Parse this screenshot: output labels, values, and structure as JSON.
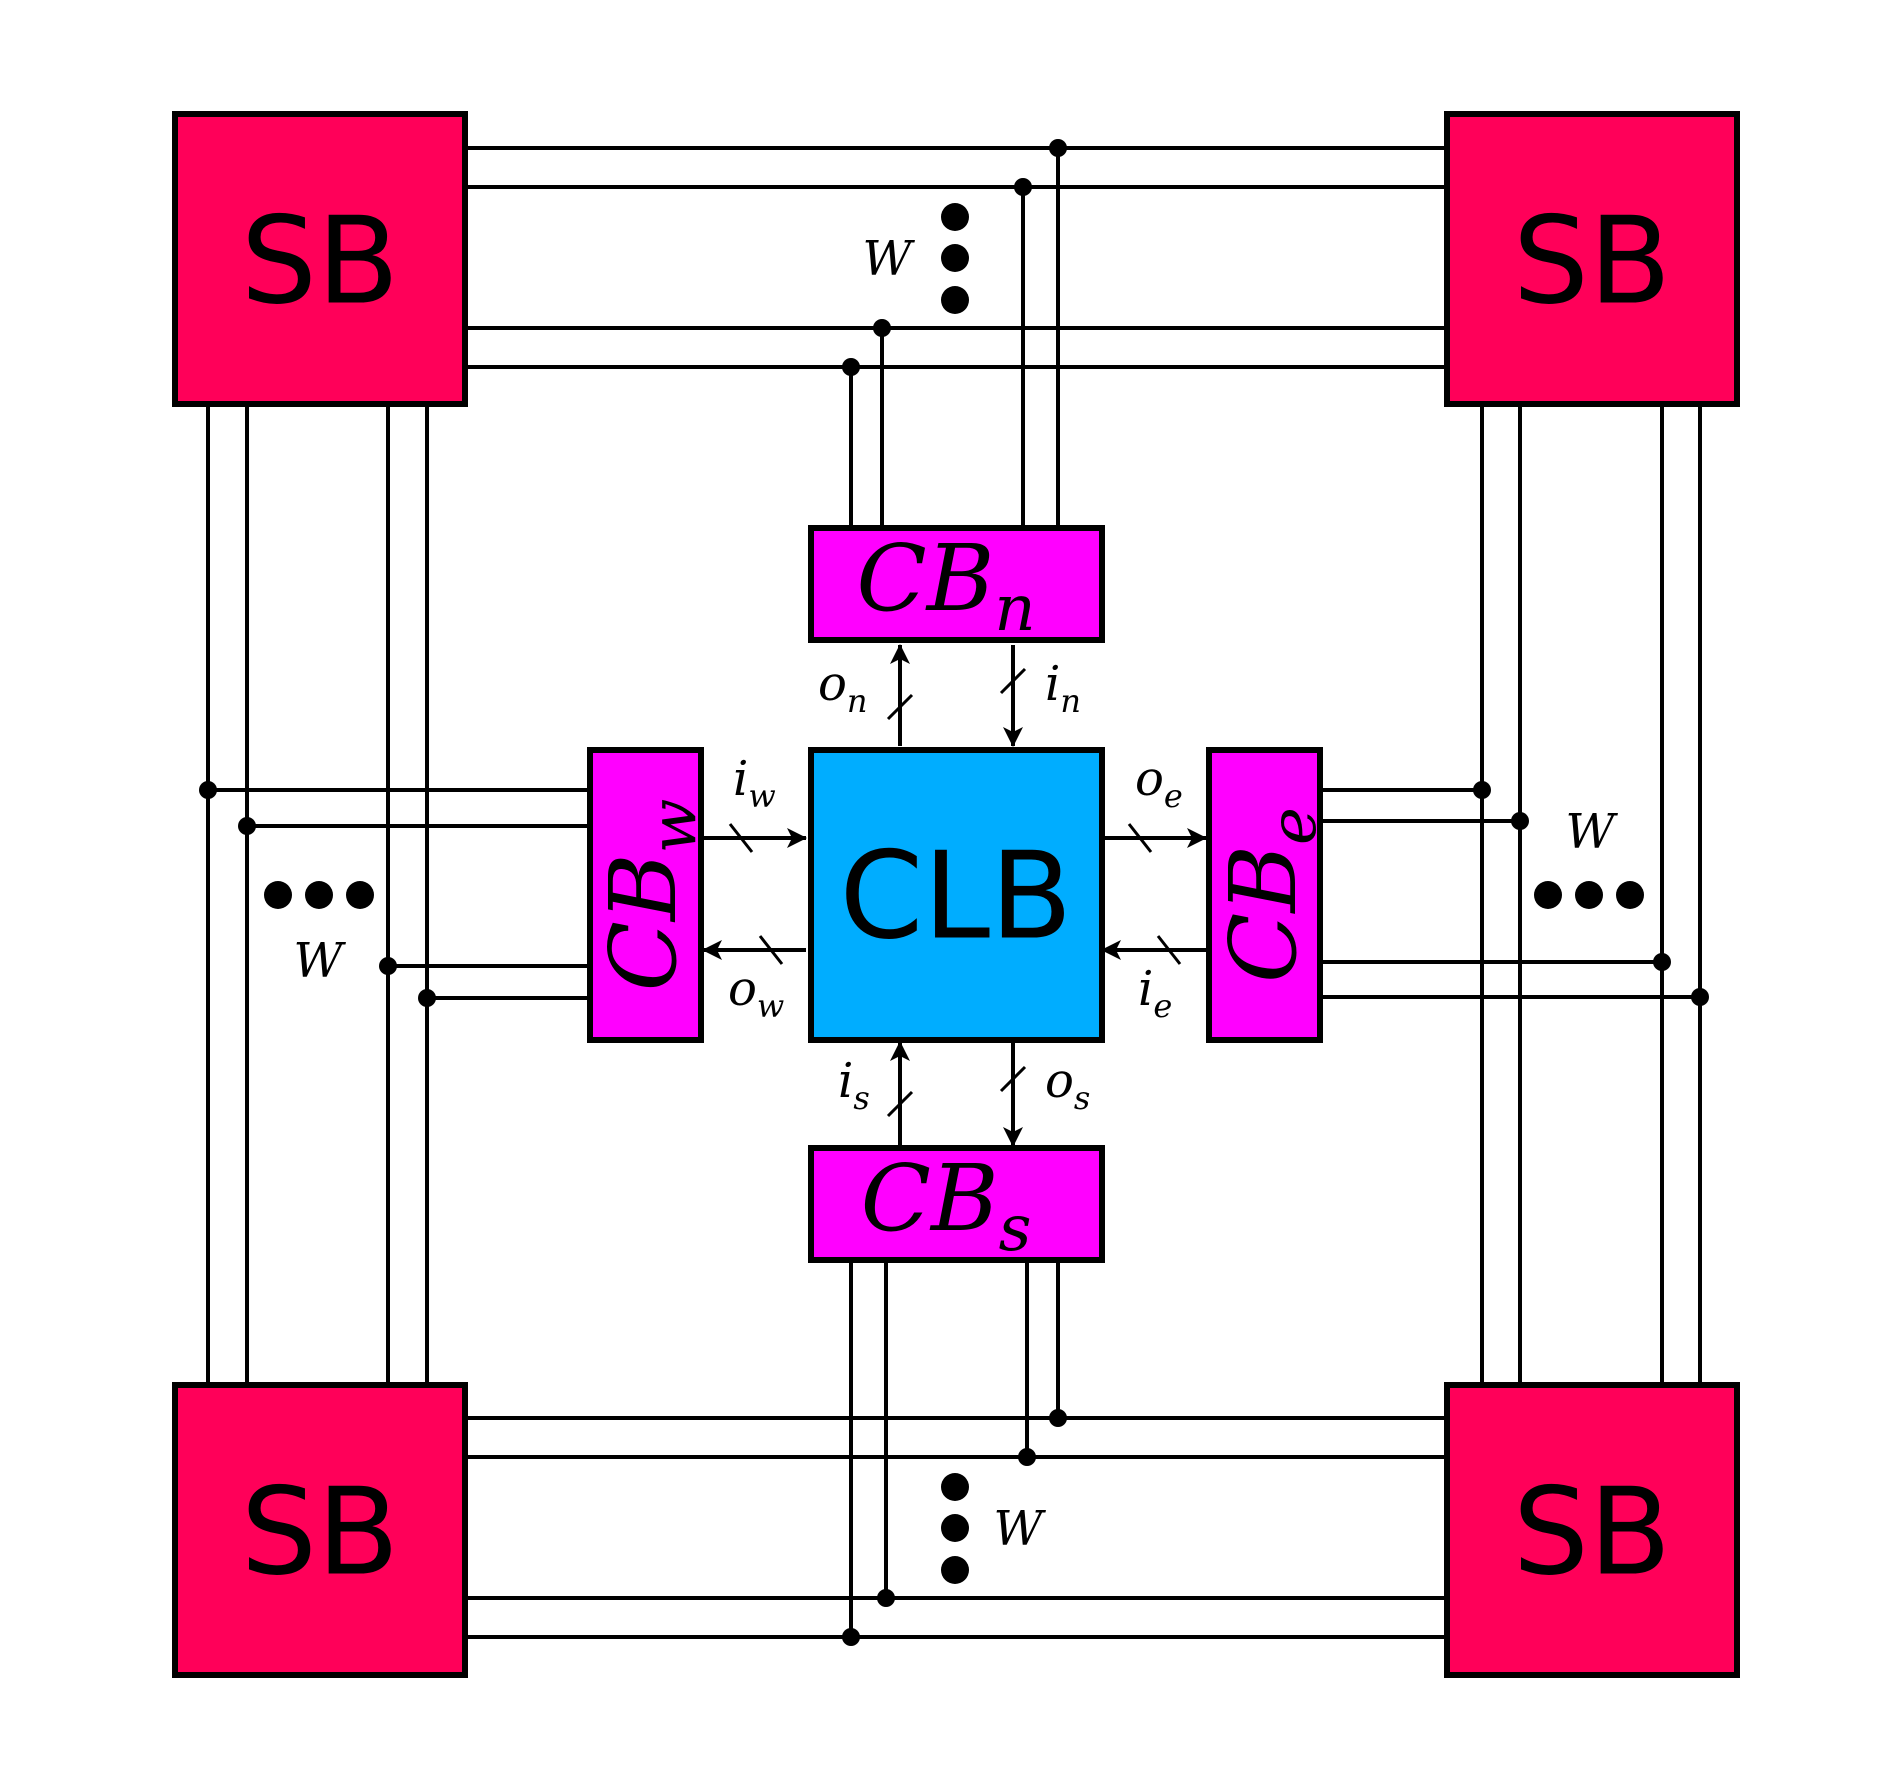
{
  "colors": {
    "switch_box": "#FF0059",
    "connection_box": "#FF00FF",
    "logic_block": "#00ADFF",
    "stroke": "#000000"
  },
  "blocks": {
    "switch_boxes": [
      {
        "id": "sb-top-left",
        "label": "SB"
      },
      {
        "id": "sb-top-right",
        "label": "SB"
      },
      {
        "id": "sb-bottom-left",
        "label": "SB"
      },
      {
        "id": "sb-bottom-right",
        "label": "SB"
      }
    ],
    "clb": {
      "label": "CLB"
    },
    "cb_north": {
      "base": "CB",
      "sub": "n"
    },
    "cb_south": {
      "base": "CB",
      "sub": "s"
    },
    "cb_west": {
      "base": "CB",
      "sub": "w"
    },
    "cb_east": {
      "base": "CB",
      "sub": "e"
    }
  },
  "signals": {
    "o_n": {
      "base": "o",
      "sub": "n"
    },
    "i_n": {
      "base": "i",
      "sub": "n"
    },
    "i_w": {
      "base": "i",
      "sub": "w"
    },
    "o_w": {
      "base": "o",
      "sub": "w"
    },
    "o_e": {
      "base": "o",
      "sub": "e"
    },
    "i_e": {
      "base": "i",
      "sub": "e"
    },
    "i_s": {
      "base": "i",
      "sub": "s"
    },
    "o_s": {
      "base": "o",
      "sub": "s"
    }
  },
  "width_labels": {
    "top": "W",
    "left": "W",
    "right": "W",
    "bottom": "W"
  }
}
